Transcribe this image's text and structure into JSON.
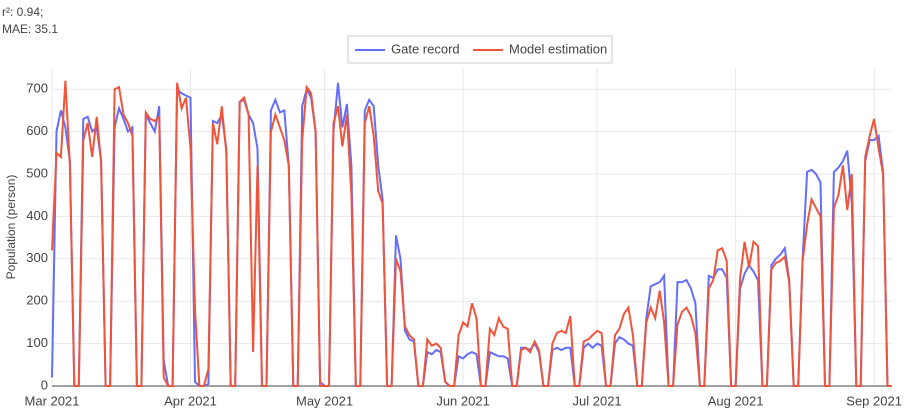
{
  "chart_data": {
    "type": "line",
    "annotations": [
      "r²: 0.94;",
      "MAE: 35.1"
    ],
    "y_label": "Population (person)",
    "x": [
      0,
      1,
      2,
      3,
      4,
      5,
      6,
      7,
      8,
      9,
      10,
      11,
      12,
      13,
      14,
      15,
      16,
      17,
      18,
      19,
      20,
      21,
      22,
      23,
      24,
      25,
      26,
      27,
      28,
      29,
      30,
      31,
      32,
      33,
      34,
      35,
      36,
      37,
      38,
      39,
      40,
      41,
      42,
      43,
      44,
      45,
      46,
      47,
      48,
      49,
      50,
      51,
      52,
      53,
      54,
      55,
      56,
      57,
      58,
      59,
      60,
      61,
      62,
      63,
      64,
      65,
      66,
      67,
      68,
      69,
      70,
      71,
      72,
      73,
      74,
      75,
      76,
      77,
      78,
      79,
      80,
      81,
      82,
      83,
      84,
      85,
      86,
      87,
      88,
      89,
      90,
      91,
      92,
      93,
      94,
      95,
      96,
      97,
      98,
      99,
      100,
      101,
      102,
      103,
      104,
      105,
      106,
      107,
      108,
      109,
      110,
      111,
      112,
      113,
      114,
      115,
      116,
      117,
      118,
      119,
      120,
      121,
      122,
      123,
      124,
      125,
      126,
      127,
      128,
      129,
      130,
      131,
      132,
      133,
      134,
      135,
      136,
      137,
      138,
      139,
      140,
      141,
      142,
      143,
      144,
      145,
      146,
      147,
      148,
      149,
      150,
      151,
      152,
      153,
      154,
      155,
      156,
      157,
      158,
      159,
      160,
      161,
      162,
      163,
      164,
      165,
      166,
      167,
      168,
      169,
      170,
      171,
      172,
      173,
      174,
      175,
      176,
      177,
      178,
      179,
      180,
      181,
      182,
      183,
      184,
      185,
      186,
      187,
      188
    ],
    "series": [
      {
        "name": "Gate record",
        "color": "#636efa",
        "values": [
          20,
          600,
          650,
          610,
          530,
          0,
          0,
          630,
          635,
          600,
          610,
          530,
          0,
          0,
          610,
          655,
          630,
          600,
          610,
          0,
          0,
          640,
          620,
          600,
          660,
          60,
          0,
          0,
          700,
          690,
          685,
          680,
          10,
          0,
          0,
          5,
          625,
          620,
          640,
          560,
          0,
          0,
          670,
          675,
          640,
          620,
          560,
          0,
          0,
          650,
          675,
          645,
          650,
          520,
          0,
          0,
          660,
          700,
          680,
          600,
          10,
          0,
          0,
          600,
          715,
          610,
          665,
          520,
          0,
          0,
          650,
          675,
          660,
          520,
          440,
          0,
          0,
          355,
          300,
          130,
          110,
          105,
          0,
          0,
          80,
          75,
          85,
          80,
          10,
          0,
          0,
          70,
          65,
          75,
          80,
          75,
          0,
          0,
          80,
          75,
          70,
          70,
          65,
          0,
          0,
          90,
          90,
          85,
          100,
          80,
          0,
          0,
          85,
          90,
          85,
          90,
          90,
          0,
          0,
          90,
          100,
          90,
          100,
          95,
          0,
          0,
          100,
          115,
          110,
          100,
          95,
          0,
          0,
          160,
          235,
          240,
          245,
          260,
          0,
          0,
          245,
          245,
          250,
          230,
          195,
          0,
          0,
          260,
          255,
          275,
          275,
          255,
          0,
          0,
          230,
          265,
          285,
          270,
          250,
          0,
          0,
          285,
          300,
          310,
          325,
          250,
          0,
          0,
          300,
          505,
          510,
          500,
          480,
          0,
          0,
          505,
          515,
          530,
          555,
          430,
          0,
          0,
          530,
          580,
          580,
          590,
          505,
          0,
          0
        ]
      },
      {
        "name": "Model estimation",
        "color": "#ef553b",
        "values": [
          320,
          550,
          540,
          720,
          520,
          0,
          0,
          580,
          620,
          540,
          635,
          530,
          0,
          0,
          700,
          705,
          640,
          620,
          590,
          0,
          0,
          645,
          630,
          625,
          635,
          20,
          0,
          0,
          715,
          655,
          680,
          560,
          180,
          0,
          0,
          40,
          620,
          570,
          660,
          550,
          0,
          0,
          670,
          680,
          640,
          80,
          520,
          0,
          0,
          600,
          640,
          610,
          580,
          520,
          0,
          0,
          580,
          705,
          690,
          600,
          0,
          0,
          0,
          620,
          660,
          565,
          640,
          450,
          0,
          0,
          620,
          660,
          590,
          460,
          430,
          0,
          0,
          300,
          270,
          140,
          120,
          110,
          0,
          0,
          110,
          95,
          100,
          90,
          10,
          0,
          0,
          120,
          150,
          140,
          195,
          160,
          0,
          0,
          135,
          120,
          160,
          140,
          135,
          0,
          0,
          85,
          90,
          80,
          105,
          85,
          0,
          0,
          100,
          125,
          130,
          125,
          165,
          0,
          0,
          105,
          110,
          120,
          130,
          125,
          0,
          0,
          120,
          135,
          170,
          185,
          120,
          0,
          0,
          150,
          185,
          160,
          225,
          150,
          0,
          0,
          145,
          175,
          185,
          165,
          125,
          0,
          0,
          230,
          250,
          320,
          325,
          295,
          0,
          0,
          255,
          340,
          280,
          340,
          330,
          0,
          0,
          275,
          290,
          295,
          305,
          245,
          0,
          0,
          295,
          380,
          440,
          420,
          400,
          0,
          0,
          420,
          450,
          520,
          415,
          500,
          0,
          0,
          540,
          590,
          630,
          560,
          500,
          0,
          0
        ]
      }
    ],
    "xlim": [
      0,
      188
    ],
    "xticks": [
      {
        "value": 0,
        "label": "Mar 2021"
      },
      {
        "value": 31,
        "label": "Apr 2021"
      },
      {
        "value": 61,
        "label": "May 2021"
      },
      {
        "value": 92,
        "label": "Jun 2021"
      },
      {
        "value": 122,
        "label": "Jul 2021"
      },
      {
        "value": 153,
        "label": "Aug 2021"
      },
      {
        "value": 184,
        "label": "Sep 2021"
      }
    ],
    "ylim": [
      0,
      750
    ],
    "yticks": [
      0,
      100,
      200,
      300,
      400,
      500,
      600,
      700
    ],
    "grid": true
  }
}
